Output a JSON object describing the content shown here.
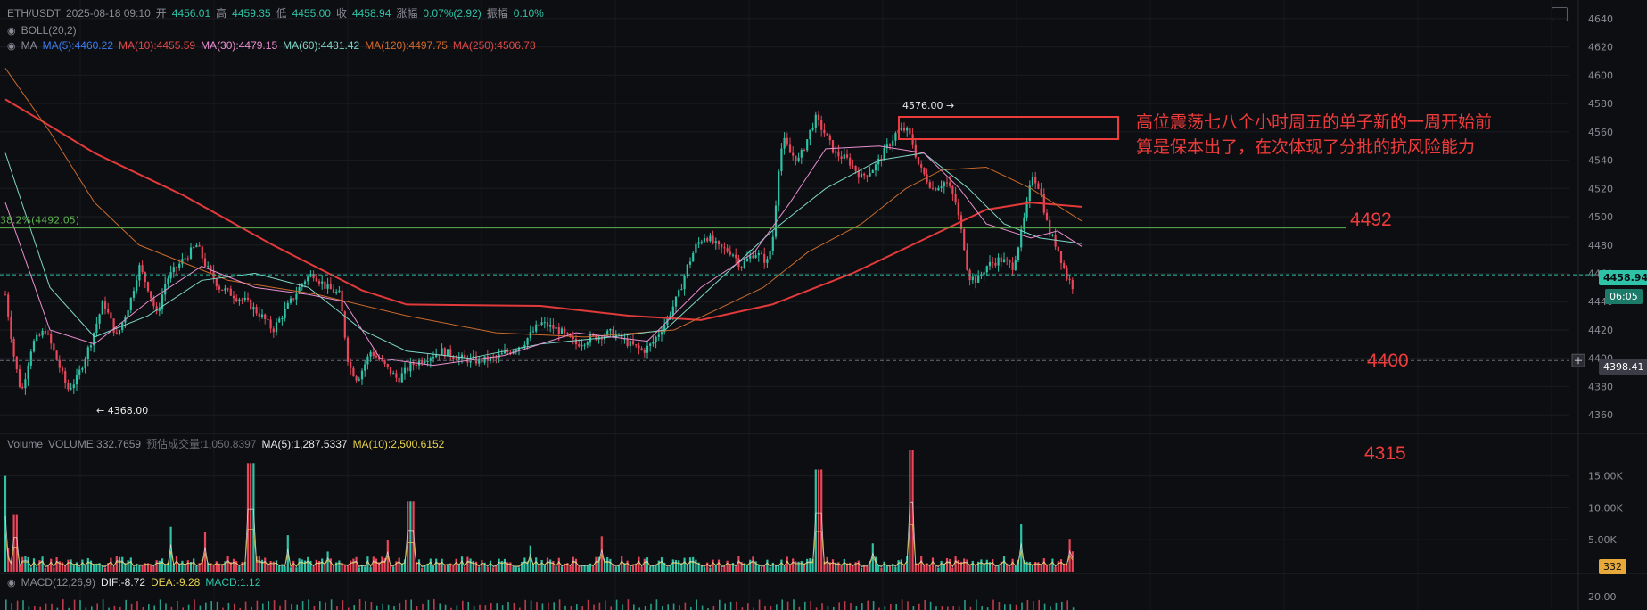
{
  "header": {
    "symbol": "ETH/USDT",
    "datetime": "2025-08-18 09:10",
    "open_label": "开",
    "open": "4456.01",
    "high_label": "高",
    "high": "4459.35",
    "low_label": "低",
    "low": "4455.00",
    "close_label": "收",
    "close": "4458.94",
    "change_label": "涨幅",
    "change": "0.07%(2.92)",
    "amplitude_label": "振幅",
    "amplitude": "0.10%"
  },
  "boll": {
    "label": "BOLL(20,2)"
  },
  "ma": {
    "label": "MA",
    "items": [
      {
        "text": "MA(5):4460.22",
        "color": "#3d7df0"
      },
      {
        "text": "MA(10):4455.59",
        "color": "#e04848"
      },
      {
        "text": "MA(30):4479.15",
        "color": "#e98fd0"
      },
      {
        "text": "MA(60):4481.42",
        "color": "#7fd6c7"
      },
      {
        "text": "MA(120):4497.75",
        "color": "#d56a2c"
      },
      {
        "text": "MA(250):4506.78",
        "color": "#e04848"
      }
    ]
  },
  "fib": {
    "label": "38.2%(4492.05)",
    "value": 4492.05,
    "color": "#5db24d"
  },
  "annotation": {
    "line1": "高位震荡七八个小时周五的单子新的一周开始前",
    "line2": "算是保本出了，在次体现了分批的抗风险能力"
  },
  "levels": [
    {
      "text": "4492",
      "value": 4492
    },
    {
      "text": "4400",
      "value": 4400
    },
    {
      "text": "4315",
      "value": 4315
    }
  ],
  "price_tags": {
    "current": "4458.94",
    "countdown": "06:05",
    "crosshair": "4398.41",
    "volume_current": "332"
  },
  "extremes": {
    "high_label": "4576.00",
    "low_label": "4368.00"
  },
  "volume": {
    "label": "Volume",
    "volume_text": "VOLUME:332.7659",
    "estimated_text": "预估成交量:1,050.8397",
    "ma5_text": "MA(5):1,287.5337",
    "ma10_text": "MA(10):2,500.6152"
  },
  "macd": {
    "label": "MACD(12,26,9)",
    "dif_text": "DIF:-8.72",
    "dea_text": "DEA:-9.28",
    "macd_text": "MACD:1.12"
  },
  "chart_data": {
    "type": "candlestick",
    "price_axis": {
      "ticks": [
        4640,
        4620,
        4600,
        4580,
        4560,
        4540,
        4520,
        4500,
        4480,
        4460,
        4440,
        4420,
        4400,
        4380,
        4360
      ],
      "range": [
        4350,
        4645
      ]
    },
    "volume_axis": {
      "ticks": [
        15000,
        10000,
        5000
      ],
      "tick_labels": [
        "15.00K",
        "10.00K",
        "5.00K"
      ],
      "range": [
        0,
        19000
      ]
    },
    "macd_axis": {
      "ticks": [
        20
      ],
      "tick_labels": [
        "20.00"
      ]
    },
    "ohlc_anchors": [
      [
        0,
        4445
      ],
      [
        10,
        4400
      ],
      [
        18,
        4375
      ],
      [
        30,
        4410
      ],
      [
        45,
        4420
      ],
      [
        60,
        4395
      ],
      [
        70,
        4378
      ],
      [
        80,
        4385
      ],
      [
        95,
        4410
      ],
      [
        110,
        4440
      ],
      [
        125,
        4415
      ],
      [
        140,
        4440
      ],
      [
        150,
        4465
      ],
      [
        160,
        4450
      ],
      [
        170,
        4430
      ],
      [
        180,
        4455
      ],
      [
        200,
        4470
      ],
      [
        215,
        4480
      ],
      [
        225,
        4465
      ],
      [
        240,
        4450
      ],
      [
        255,
        4445
      ],
      [
        270,
        4440
      ],
      [
        290,
        4428
      ],
      [
        300,
        4420
      ],
      [
        320,
        4440
      ],
      [
        335,
        4455
      ],
      [
        345,
        4460
      ],
      [
        360,
        4450
      ],
      [
        375,
        4445
      ],
      [
        385,
        4395
      ],
      [
        395,
        4385
      ],
      [
        410,
        4405
      ],
      [
        425,
        4395
      ],
      [
        440,
        4385
      ],
      [
        455,
        4395
      ],
      [
        470,
        4400
      ],
      [
        490,
        4405
      ],
      [
        510,
        4400
      ],
      [
        530,
        4398
      ],
      [
        550,
        4400
      ],
      [
        565,
        4405
      ],
      [
        580,
        4410
      ],
      [
        600,
        4425
      ],
      [
        620,
        4420
      ],
      [
        640,
        4410
      ],
      [
        660,
        4415
      ],
      [
        680,
        4418
      ],
      [
        700,
        4410
      ],
      [
        715,
        4405
      ],
      [
        725,
        4410
      ],
      [
        740,
        4425
      ],
      [
        755,
        4445
      ],
      [
        765,
        4465
      ],
      [
        775,
        4480
      ],
      [
        785,
        4487
      ],
      [
        800,
        4478
      ],
      [
        815,
        4475
      ],
      [
        825,
        4465
      ],
      [
        840,
        4475
      ],
      [
        855,
        4468
      ],
      [
        862,
        4490
      ],
      [
        866,
        4530
      ],
      [
        872,
        4555
      ],
      [
        880,
        4545
      ],
      [
        890,
        4540
      ],
      [
        900,
        4556
      ],
      [
        908,
        4570
      ],
      [
        918,
        4560
      ],
      [
        930,
        4545
      ],
      [
        945,
        4540
      ],
      [
        960,
        4528
      ],
      [
        975,
        4535
      ],
      [
        990,
        4550
      ],
      [
        1000,
        4560
      ],
      [
        1010,
        4562
      ],
      [
        1016,
        4555
      ],
      [
        1025,
        4535
      ],
      [
        1040,
        4520
      ],
      [
        1055,
        4525
      ],
      [
        1065,
        4512
      ],
      [
        1075,
        4480
      ],
      [
        1080,
        4458
      ],
      [
        1090,
        4455
      ],
      [
        1100,
        4465
      ],
      [
        1115,
        4470
      ],
      [
        1130,
        4465
      ],
      [
        1140,
        4490
      ],
      [
        1152,
        4530
      ],
      [
        1160,
        4520
      ],
      [
        1170,
        4490
      ],
      [
        1180,
        4478
      ],
      [
        1190,
        4458
      ],
      [
        1198,
        4450
      ],
      [
        1205,
        4458
      ]
    ],
    "ma_curves": {
      "ma250": [
        [
          0,
          4583
        ],
        [
          40,
          4568
        ],
        [
          100,
          4545
        ],
        [
          200,
          4515
        ],
        [
          300,
          4480
        ],
        [
          400,
          4448
        ],
        [
          450,
          4438
        ],
        [
          600,
          4437
        ],
        [
          700,
          4430
        ],
        [
          780,
          4427
        ],
        [
          860,
          4438
        ],
        [
          950,
          4460
        ],
        [
          1050,
          4490
        ],
        [
          1100,
          4505
        ],
        [
          1150,
          4510
        ],
        [
          1207,
          4507
        ]
      ],
      "ma120": [
        [
          0,
          4605
        ],
        [
          50,
          4560
        ],
        [
          100,
          4510
        ],
        [
          150,
          4480
        ],
        [
          250,
          4455
        ],
        [
          350,
          4445
        ],
        [
          450,
          4430
        ],
        [
          550,
          4418
        ],
        [
          650,
          4415
        ],
        [
          750,
          4420
        ],
        [
          850,
          4450
        ],
        [
          900,
          4475
        ],
        [
          960,
          4495
        ],
        [
          1010,
          4520
        ],
        [
          1050,
          4533
        ],
        [
          1100,
          4535
        ],
        [
          1150,
          4520
        ],
        [
          1207,
          4497
        ]
      ],
      "ma60": [
        [
          0,
          4545
        ],
        [
          50,
          4450
        ],
        [
          100,
          4415
        ],
        [
          160,
          4430
        ],
        [
          220,
          4455
        ],
        [
          280,
          4460
        ],
        [
          340,
          4450
        ],
        [
          400,
          4420
        ],
        [
          450,
          4405
        ],
        [
          520,
          4400
        ],
        [
          600,
          4410
        ],
        [
          680,
          4415
        ],
        [
          740,
          4420
        ],
        [
          800,
          4455
        ],
        [
          860,
          4490
        ],
        [
          920,
          4520
        ],
        [
          980,
          4540
        ],
        [
          1030,
          4545
        ],
        [
          1080,
          4520
        ],
        [
          1120,
          4495
        ],
        [
          1160,
          4485
        ],
        [
          1207,
          4481
        ]
      ],
      "ma30": [
        [
          0,
          4510
        ],
        [
          50,
          4420
        ],
        [
          100,
          4410
        ],
        [
          160,
          4440
        ],
        [
          220,
          4465
        ],
        [
          280,
          4450
        ],
        [
          340,
          4445
        ],
        [
          380,
          4440
        ],
        [
          420,
          4400
        ],
        [
          480,
          4395
        ],
        [
          560,
          4402
        ],
        [
          640,
          4418
        ],
        [
          720,
          4412
        ],
        [
          780,
          4450
        ],
        [
          840,
          4475
        ],
        [
          880,
          4510
        ],
        [
          920,
          4548
        ],
        [
          980,
          4550
        ],
        [
          1030,
          4545
        ],
        [
          1070,
          4520
        ],
        [
          1100,
          4495
        ],
        [
          1150,
          4485
        ],
        [
          1180,
          4490
        ],
        [
          1207,
          4479
        ]
      ]
    },
    "fib_level": 4492.05,
    "current_price": 4458.94,
    "crosshair_price": 4398.41
  }
}
